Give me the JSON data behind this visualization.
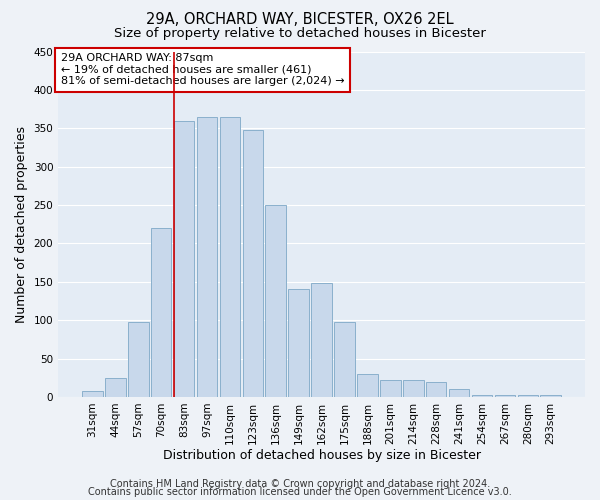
{
  "title": "29A, ORCHARD WAY, BICESTER, OX26 2EL",
  "subtitle": "Size of property relative to detached houses in Bicester",
  "xlabel": "Distribution of detached houses by size in Bicester",
  "ylabel": "Number of detached properties",
  "categories": [
    "31sqm",
    "44sqm",
    "57sqm",
    "70sqm",
    "83sqm",
    "97sqm",
    "110sqm",
    "123sqm",
    "136sqm",
    "149sqm",
    "162sqm",
    "175sqm",
    "188sqm",
    "201sqm",
    "214sqm",
    "228sqm",
    "241sqm",
    "254sqm",
    "267sqm",
    "280sqm",
    "293sqm"
  ],
  "values": [
    8,
    25,
    98,
    220,
    360,
    365,
    365,
    348,
    250,
    140,
    148,
    97,
    30,
    22,
    22,
    20,
    10,
    3,
    2,
    2,
    2
  ],
  "bar_color": "#c8d8eb",
  "bar_edge_color": "#8ab0cc",
  "highlight_bar_index": 4,
  "highlight_line_color": "#cc0000",
  "annotation_box_edge_color": "#cc0000",
  "annotation_title": "29A ORCHARD WAY: 87sqm",
  "annotation_line1": "← 19% of detached houses are smaller (461)",
  "annotation_line2": "81% of semi-detached houses are larger (2,024) →",
  "ylim": [
    0,
    450
  ],
  "yticks": [
    0,
    50,
    100,
    150,
    200,
    250,
    300,
    350,
    400,
    450
  ],
  "footer1": "Contains HM Land Registry data © Crown copyright and database right 2024.",
  "footer2": "Contains public sector information licensed under the Open Government Licence v3.0.",
  "bg_color": "#eef2f7",
  "plot_bg_color": "#e4ecf5",
  "grid_color": "#ffffff",
  "title_fontsize": 10.5,
  "subtitle_fontsize": 9.5,
  "label_fontsize": 9,
  "tick_fontsize": 7.5,
  "footer_fontsize": 7,
  "ann_fontsize": 8.0
}
